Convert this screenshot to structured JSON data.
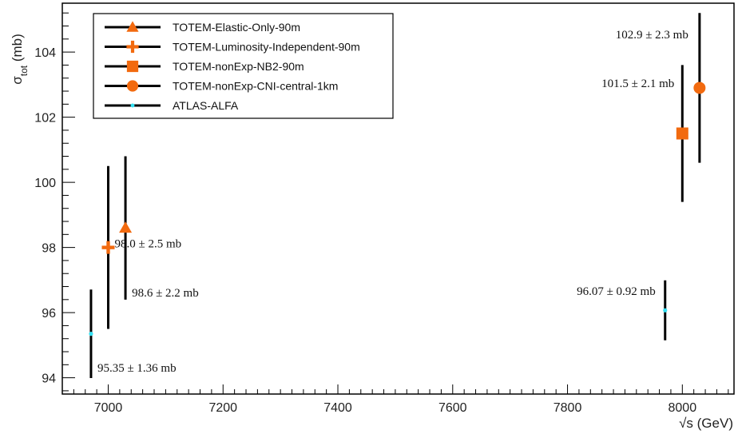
{
  "chart_data": {
    "type": "scatter",
    "xlabel": "√s (GeV)",
    "ylabel_main": "σ",
    "ylabel_sub": "tot",
    "ylabel_unit": " (mb)",
    "xlim": [
      6920,
      8090
    ],
    "ylim": [
      93.5,
      105.5
    ],
    "xticks": [
      7000,
      7200,
      7400,
      7600,
      7800,
      8000
    ],
    "yticks": [
      94,
      96,
      98,
      100,
      102,
      104
    ],
    "grid": false,
    "legend_position": "top-left",
    "accent_color": "#f26a0f",
    "atlas_color": "#35e0f2",
    "series": [
      {
        "name": "TOTEM-Elastic-Only-90m",
        "marker": "triangle",
        "points": [
          {
            "x": 7030,
            "y": 98.6,
            "err": 2.2,
            "label": "98.6 ± 2.2 mb"
          }
        ]
      },
      {
        "name": "TOTEM-Luminosity-Independent-90m",
        "marker": "cross",
        "points": [
          {
            "x": 7000,
            "y": 98.0,
            "err": 2.5,
            "label": "98.0 ± 2.5 mb"
          }
        ]
      },
      {
        "name": "TOTEM-nonExp-NB2-90m",
        "marker": "square",
        "points": [
          {
            "x": 8000,
            "y": 101.5,
            "err": 2.1,
            "label": "101.5 ± 2.1 mb"
          }
        ]
      },
      {
        "name": "TOTEM-nonExp-CNI-central-1km",
        "marker": "circle",
        "points": [
          {
            "x": 8030,
            "y": 102.9,
            "err": 2.3,
            "label": "102.9 ± 2.3 mb"
          }
        ]
      },
      {
        "name": "ATLAS-ALFA",
        "marker": "dot",
        "points": [
          {
            "x": 6970,
            "y": 95.35,
            "err": 1.36,
            "label": "95.35 ± 1.36 mb"
          },
          {
            "x": 7970,
            "y": 96.07,
            "err": 0.92,
            "label": "96.07 ± 0.92 mb"
          }
        ]
      }
    ]
  }
}
